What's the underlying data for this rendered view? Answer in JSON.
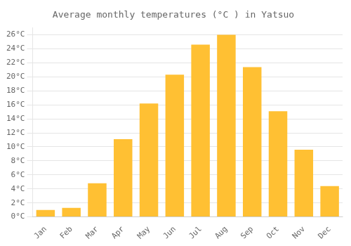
{
  "chart_data": {
    "type": "bar",
    "title": "Average monthly temperatures (°C ) in Yatsuo",
    "categories": [
      "Jan",
      "Feb",
      "Mar",
      "Apr",
      "May",
      "Jun",
      "Jul",
      "Aug",
      "Sep",
      "Oct",
      "Nov",
      "Dec"
    ],
    "values": [
      1.0,
      1.3,
      4.8,
      11.1,
      16.2,
      20.3,
      24.6,
      26.0,
      21.4,
      15.1,
      9.6,
      4.4
    ],
    "color": "#FFC033",
    "ylim": [
      0,
      27
    ],
    "yticks": [
      {
        "value": 0,
        "label": "0°C"
      },
      {
        "value": 2,
        "label": "2°C"
      },
      {
        "value": 4,
        "label": "4°C"
      },
      {
        "value": 6,
        "label": "6°C"
      },
      {
        "value": 8,
        "label": "8°C"
      },
      {
        "value": 10,
        "label": "10°C"
      },
      {
        "value": 12,
        "label": "12°C"
      },
      {
        "value": 14,
        "label": "14°C"
      },
      {
        "value": 16,
        "label": "16°C"
      },
      {
        "value": 18,
        "label": "18°C"
      },
      {
        "value": 20,
        "label": "20°C"
      },
      {
        "value": 22,
        "label": "22°C"
      },
      {
        "value": 24,
        "label": "24°C"
      },
      {
        "value": 26,
        "label": "26°C"
      }
    ],
    "grid": true
  }
}
